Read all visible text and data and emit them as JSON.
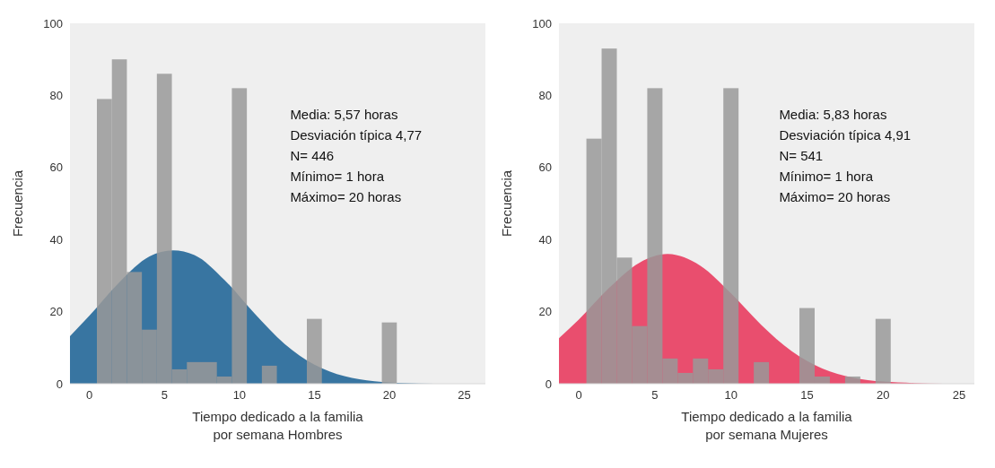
{
  "chart_data": [
    {
      "type": "histogram",
      "xlabel": "Tiempo dedicado a la familia\npor semana Hombres",
      "ylabel": "Frecuencia",
      "bins": [
        0.5,
        1.5,
        2.5,
        3.5,
        4.5,
        5.5,
        6.5,
        7.5,
        8.5,
        9.5,
        10.5,
        11.5,
        12.5,
        13.5,
        14.5,
        15.5,
        16.5,
        17.5,
        18.5,
        19.5,
        20.5
      ],
      "series": [
        {
          "type": "histogram",
          "color": "#999999",
          "values": [
            79,
            90,
            31,
            15,
            86,
            4,
            6,
            6,
            2,
            82,
            0,
            5,
            0,
            0,
            18,
            0,
            0,
            0,
            0,
            17
          ]
        },
        {
          "type": "area",
          "color": "#1f6496",
          "x": [
            -1.3,
            0,
            2,
            4,
            5.57,
            7,
            9,
            11,
            13,
            15,
            17,
            19,
            21,
            23,
            26.4
          ],
          "values": [
            13.2,
            18.9,
            28.2,
            35.3,
            37,
            35.7,
            28.8,
            19.5,
            11.1,
            5.3,
            2.1,
            0.7,
            0.2,
            0,
            0
          ]
        }
      ],
      "xlim": [
        -1.3,
        26.4
      ],
      "xticks": [
        0,
        5,
        10,
        15,
        20,
        25
      ],
      "ylim": [
        0,
        100
      ],
      "yticks": [
        0,
        20,
        40,
        60,
        80,
        100
      ],
      "grid": false,
      "annotations": [
        "Media: 5,57 horas",
        "Desviación típica 4,77",
        "N= 446",
        "Mínimo= 1 hora",
        "Máximo= 20 horas"
      ]
    },
    {
      "type": "histogram",
      "xlabel": "Tiempo dedicado a la familia\npor semana Mujeres",
      "ylabel": "Frecuencia",
      "bins": [
        0.5,
        1.5,
        2.5,
        3.5,
        4.5,
        5.5,
        6.5,
        7.5,
        8.5,
        9.5,
        10.5,
        11.5,
        12.5,
        13.5,
        14.5,
        15.5,
        16.5,
        17.5,
        18.5,
        19.5,
        20.5
      ],
      "series": [
        {
          "type": "histogram",
          "color": "#999999",
          "values": [
            68,
            93,
            35,
            16,
            82,
            7,
            3,
            7,
            4,
            82,
            0,
            6,
            0,
            0,
            21,
            2,
            0,
            2,
            0,
            18
          ]
        },
        {
          "type": "area",
          "color": "#e8385c",
          "x": [
            -1.3,
            0,
            2,
            4,
            5.83,
            8,
            10,
            12,
            14,
            16,
            18,
            20,
            22,
            24,
            26
          ],
          "values": [
            12.6,
            17.8,
            26.6,
            33.6,
            36,
            32.7,
            25.1,
            16.3,
            9,
            4.2,
            1.7,
            0.6,
            0.2,
            0,
            0
          ]
        }
      ],
      "xlim": [
        -1.3,
        26
      ],
      "xticks": [
        0,
        5,
        10,
        15,
        20,
        25
      ],
      "ylim": [
        0,
        100
      ],
      "yticks": [
        0,
        20,
        40,
        60,
        80,
        100
      ],
      "grid": false,
      "annotations": [
        "Media: 5,83 horas",
        "Desviación típica 4,91",
        "N= 541",
        "Mínimo= 1 hora",
        "Máximo= 20 horas"
      ]
    }
  ]
}
